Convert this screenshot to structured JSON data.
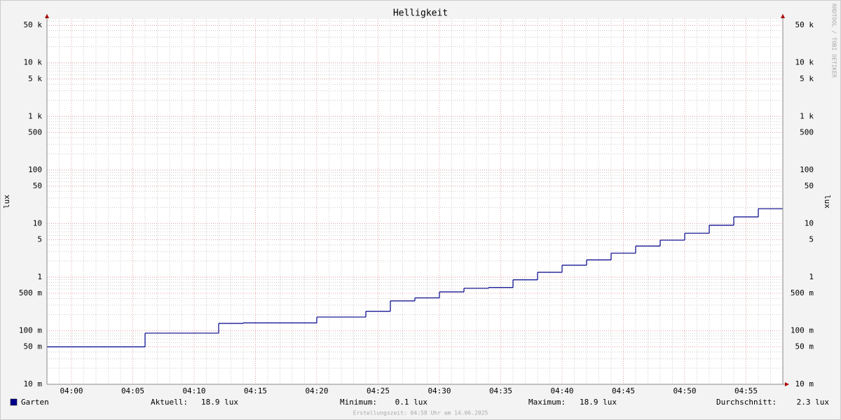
{
  "chart_data": {
    "type": "line",
    "step": "post",
    "title": "Helligkeit",
    "ylabel": "lux",
    "log_scale": true,
    "grid": true,
    "watermark": "RRDTOOL / TOBI OETIKER",
    "footer": "Erstellungszeit: 04:58 Uhr am 14.06.2025",
    "xlim": [
      238,
      298
    ],
    "xticks": [
      {
        "value": 240,
        "label": "04:00"
      },
      {
        "value": 245,
        "label": "04:05"
      },
      {
        "value": 250,
        "label": "04:10"
      },
      {
        "value": 255,
        "label": "04:15"
      },
      {
        "value": 260,
        "label": "04:20"
      },
      {
        "value": 265,
        "label": "04:25"
      },
      {
        "value": 270,
        "label": "04:30"
      },
      {
        "value": 275,
        "label": "04:35"
      },
      {
        "value": 280,
        "label": "04:40"
      },
      {
        "value": 285,
        "label": "04:45"
      },
      {
        "value": 290,
        "label": "04:50"
      },
      {
        "value": 295,
        "label": "04:55"
      }
    ],
    "ylim": [
      0.01,
      66000
    ],
    "yticks": [
      {
        "value": 0.01,
        "label": "10 m"
      },
      {
        "value": 0.05,
        "label": "50 m"
      },
      {
        "value": 0.1,
        "label": "100 m"
      },
      {
        "value": 0.5,
        "label": "500 m"
      },
      1,
      5,
      10,
      50,
      100,
      500,
      {
        "value": 1000,
        "label": "1 k"
      },
      {
        "value": 5000,
        "label": "5 k"
      },
      {
        "value": 10000,
        "label": "10 k"
      },
      {
        "value": 50000,
        "label": "50 k"
      }
    ],
    "x": [
      238,
      246,
      252,
      254,
      260,
      264,
      266,
      268,
      270,
      272,
      274,
      276,
      278,
      280,
      282,
      284,
      286,
      288,
      290,
      292,
      294,
      296
    ],
    "series": [
      {
        "name": "Garten",
        "color": "#00008b",
        "values": [
          0.05,
          0.09,
          0.137,
          0.14,
          0.18,
          0.23,
          0.36,
          0.41,
          0.53,
          0.62,
          0.64,
          0.89,
          1.23,
          1.67,
          2.1,
          2.8,
          3.8,
          4.9,
          6.6,
          9.3,
          13.3,
          18.9
        ]
      }
    ],
    "stats": [
      {
        "label": "Aktuell:",
        "value": "18.9 lux"
      },
      {
        "label": "Minimum:",
        "value": "0.1 lux"
      },
      {
        "label": "Maximum:",
        "value": "18.9 lux"
      },
      {
        "label": "Durchschnitt:",
        "value": "2.3 lux"
      }
    ]
  }
}
